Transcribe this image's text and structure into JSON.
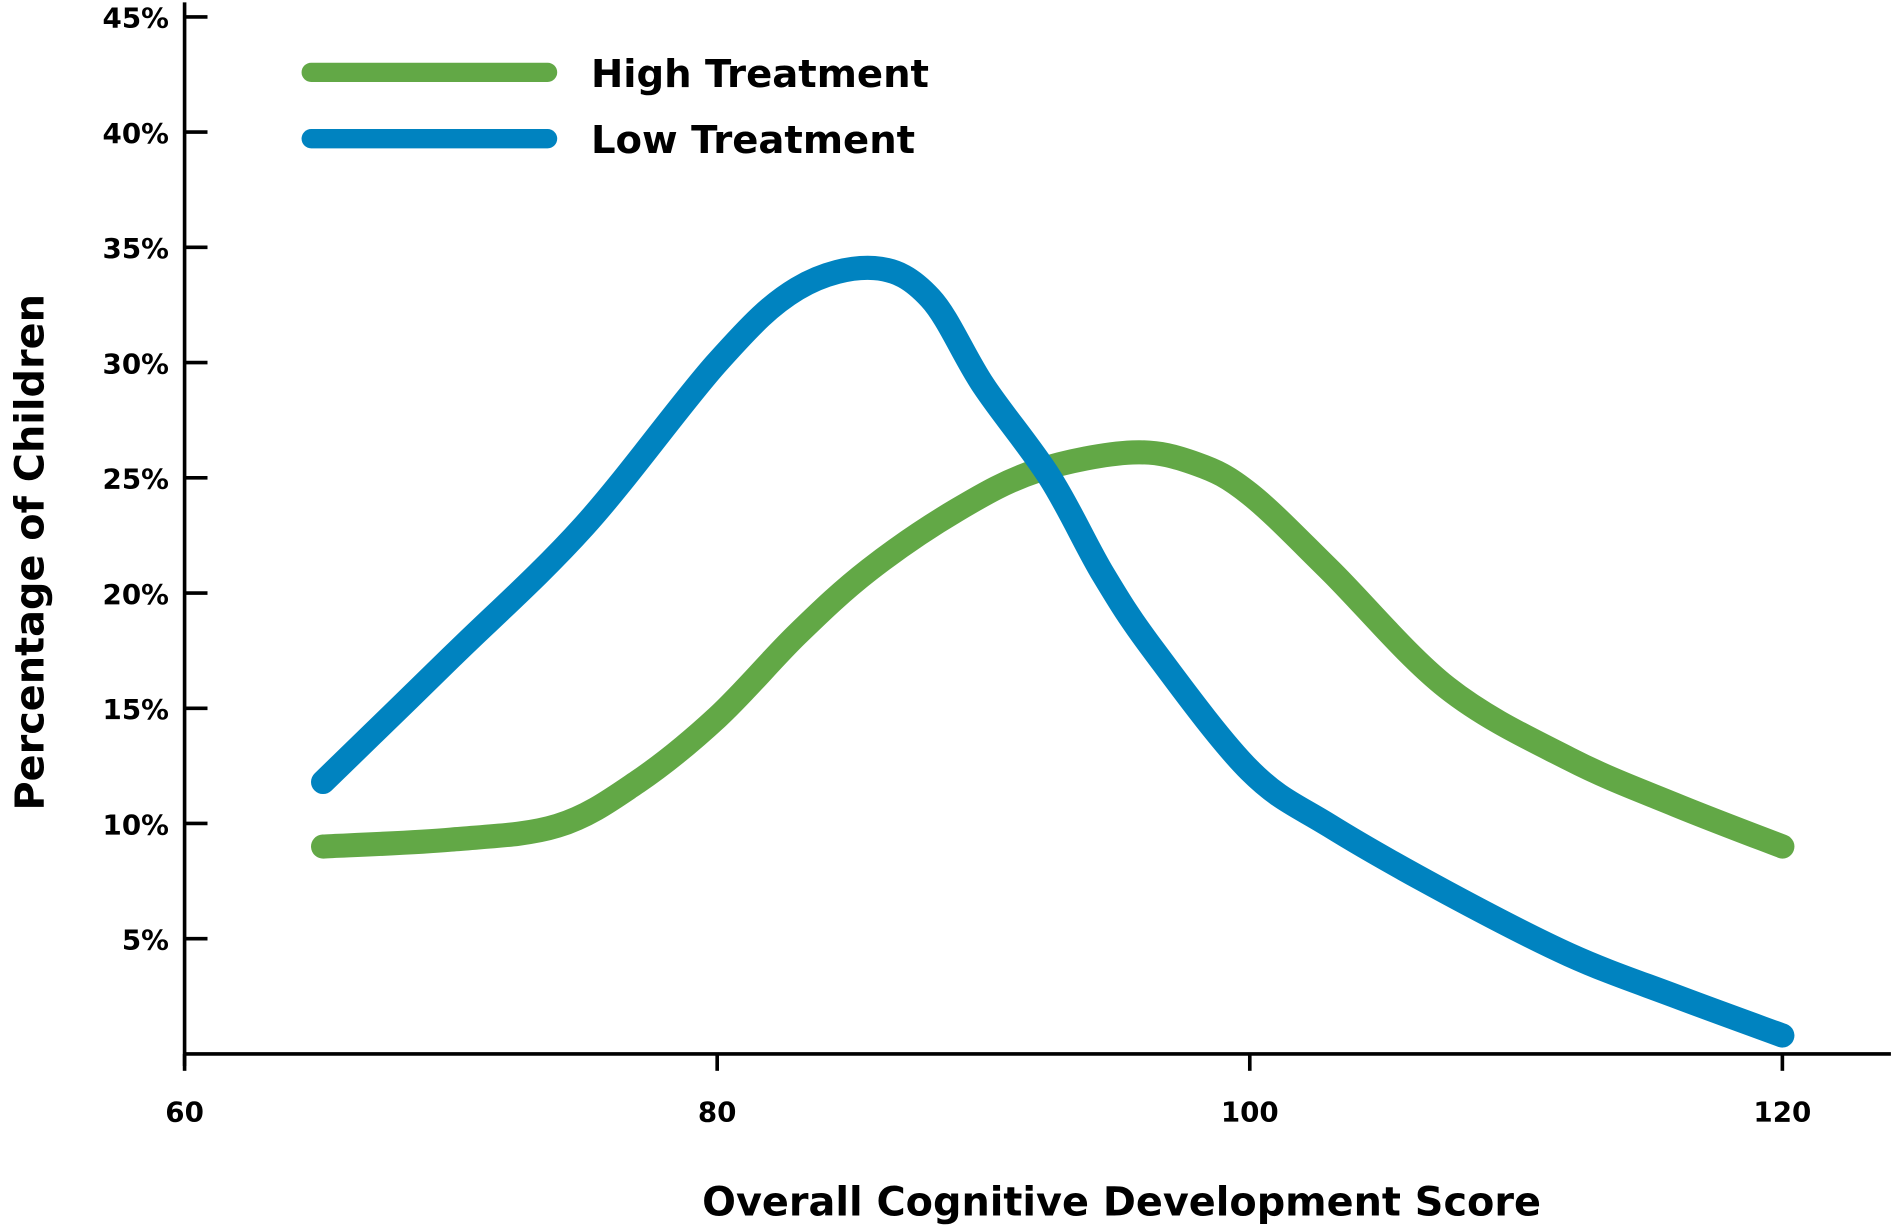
{
  "chart_data": {
    "type": "line",
    "title": "",
    "xlabel": "Overall Cognitive Development Score",
    "ylabel": "Percentage of Children",
    "xlim": [
      60,
      123
    ],
    "ylim": [
      0,
      45
    ],
    "x_ticks": [
      60,
      80,
      100,
      120
    ],
    "x_tick_labels": [
      "60",
      "80",
      "100",
      "120"
    ],
    "y_ticks": [
      5,
      10,
      15,
      20,
      25,
      30,
      35,
      40,
      45
    ],
    "y_tick_labels": [
      "5%",
      "10%",
      "15%",
      "20%",
      "25%",
      "30%",
      "35%",
      "40%",
      "45%"
    ],
    "grid": false,
    "legend_position": "top-left",
    "series": [
      {
        "name": "High Treatment",
        "color": "#62a846",
        "x": [
          65.2,
          70,
          74,
          77,
          80,
          83,
          85.7,
          89,
          92,
          95.6,
          98,
          100,
          103,
          107.4,
          112,
          116,
          120
        ],
        "y": [
          9.0,
          9.3,
          9.9,
          11.8,
          14.6,
          18.2,
          21.0,
          23.6,
          25.3,
          26.1,
          25.6,
          24.3,
          21.0,
          15.9,
          12.8,
          10.8,
          9.0
        ]
      },
      {
        "name": "Low Treatment",
        "color": "#0083c0",
        "x": [
          65.2,
          70,
          75,
          80,
          83,
          85.9,
          88,
          90,
          92.5,
          94.5,
          96.4,
          100,
          103,
          107.4,
          112,
          116,
          120
        ],
        "y": [
          11.8,
          17.2,
          22.9,
          30.0,
          33.2,
          34.1,
          32.8,
          29.0,
          25.0,
          20.8,
          17.5,
          12.3,
          9.9,
          7.0,
          4.3,
          2.5,
          0.8
        ]
      }
    ]
  }
}
